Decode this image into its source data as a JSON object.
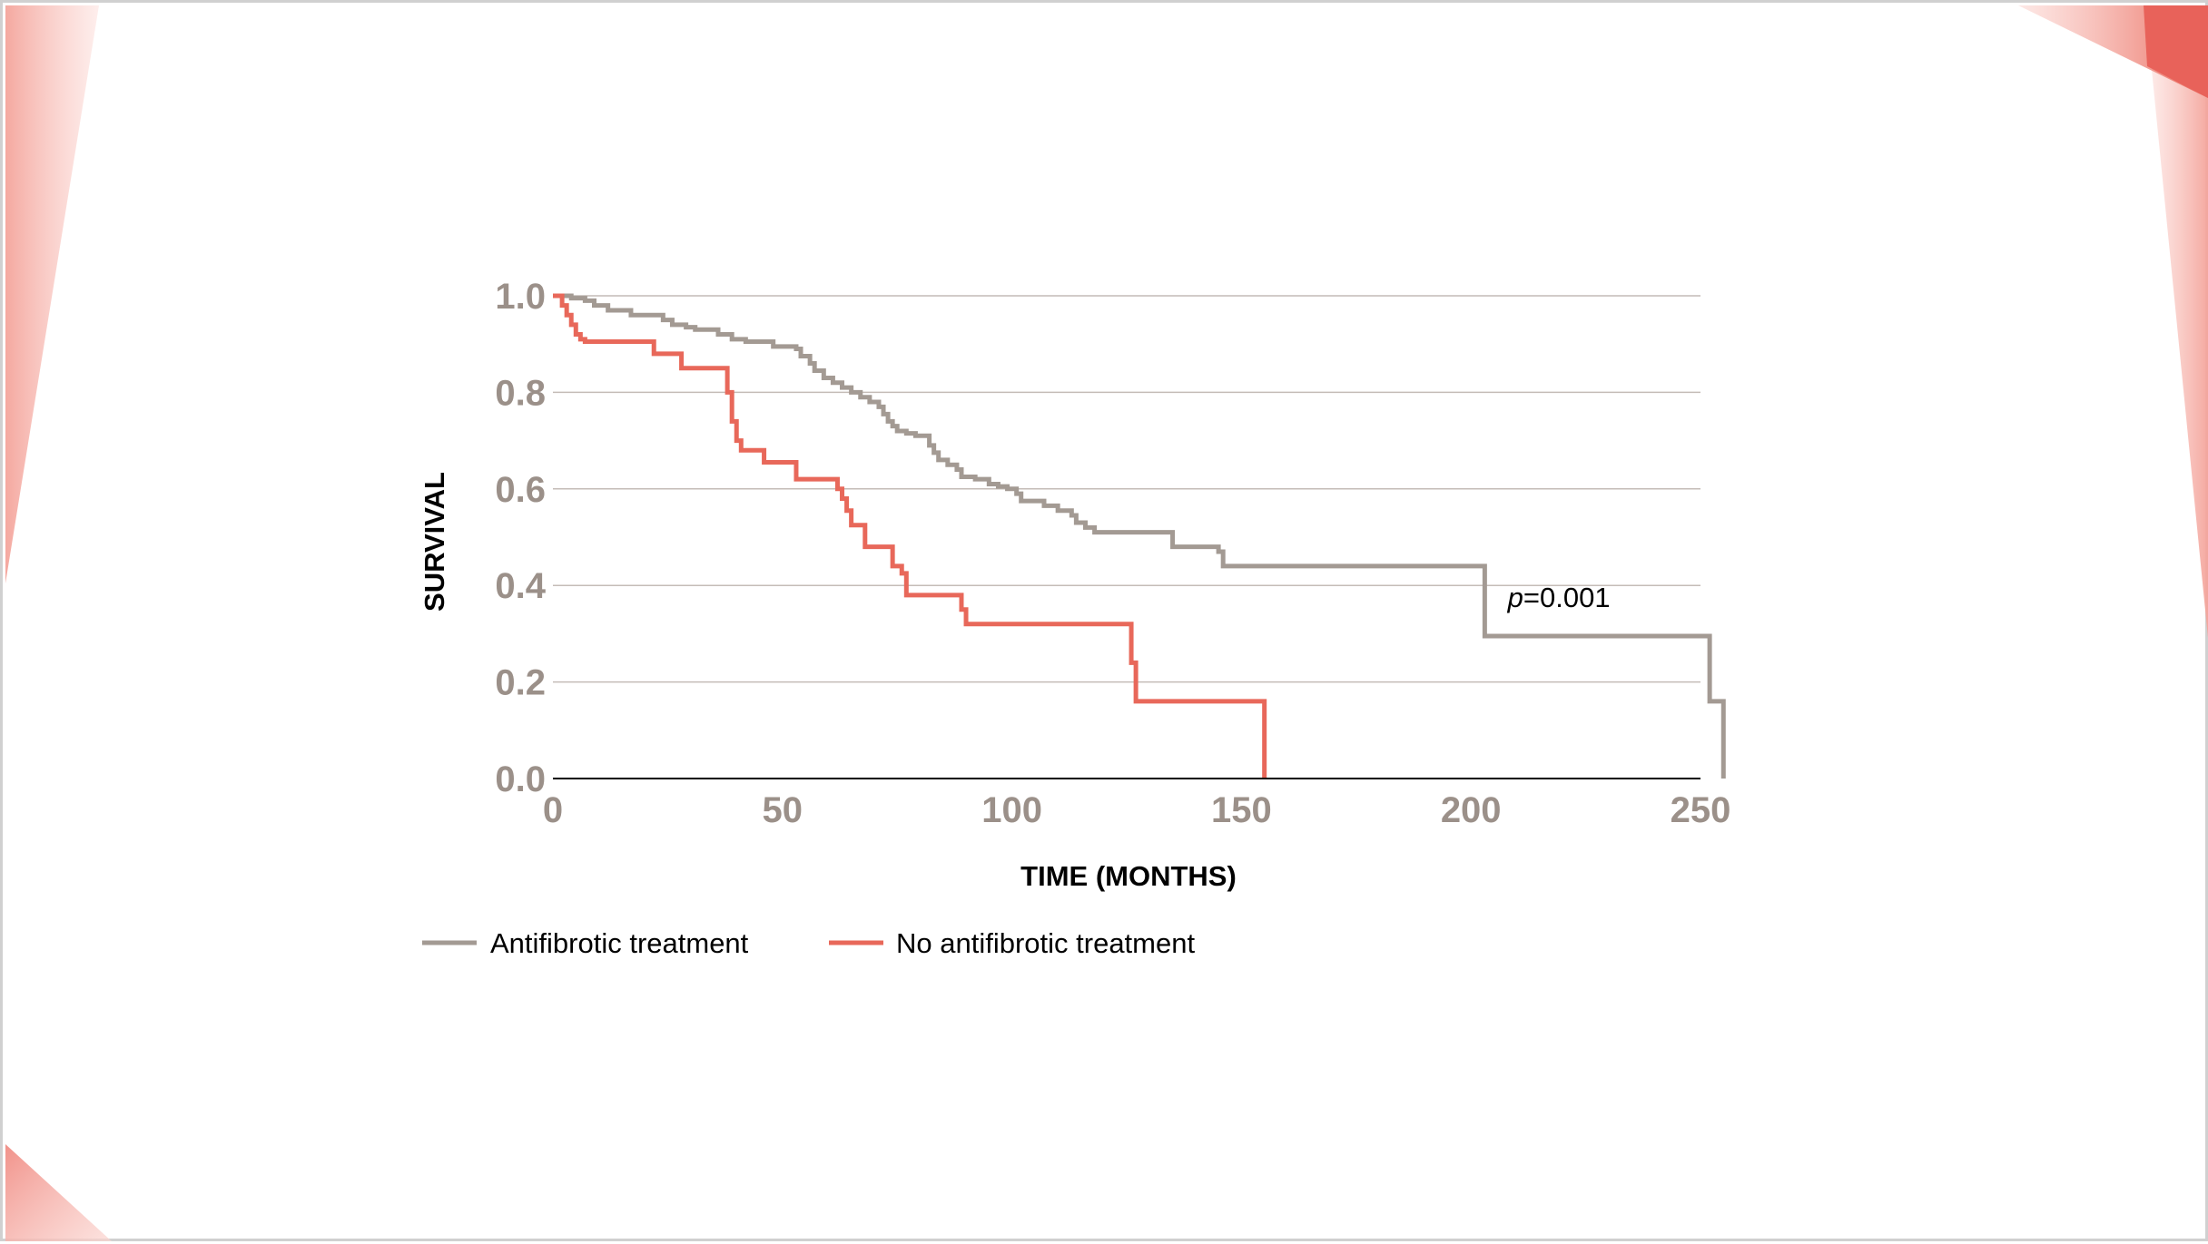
{
  "colors": {
    "treated": "#a39a93",
    "untreated": "#e8685a",
    "grid": "#c4bcb7",
    "tick_text": "#9b9089",
    "axis": "#000000",
    "accent": "#e8685a"
  },
  "chart_data": {
    "type": "line",
    "step": true,
    "title": "",
    "xlabel": "TIME (MONTHS)",
    "ylabel": "SURVIVAL",
    "xlim": [
      0,
      250
    ],
    "ylim": [
      0,
      1.0
    ],
    "xticks": [
      0,
      50,
      100,
      150,
      200,
      250
    ],
    "yticks": [
      0.0,
      0.2,
      0.4,
      0.6,
      0.8,
      1.0
    ],
    "ytick_labels": [
      "0.0",
      "0.2",
      "0.4",
      "0.6",
      "0.8",
      "1.0"
    ],
    "grid": "horizontal",
    "legend_position": "bottom-left",
    "annotation": {
      "p_symbol": "p",
      "p_value": "=0.001",
      "x": 208,
      "y": 0.355
    },
    "series": [
      {
        "name": "Antifibrotic treatment",
        "color": "#a39a93",
        "points": [
          [
            0,
            1.0
          ],
          [
            4,
            0.995
          ],
          [
            7,
            0.99
          ],
          [
            9,
            0.98
          ],
          [
            12,
            0.97
          ],
          [
            17,
            0.96
          ],
          [
            24,
            0.95
          ],
          [
            26,
            0.94
          ],
          [
            29,
            0.935
          ],
          [
            31,
            0.93
          ],
          [
            36,
            0.92
          ],
          [
            39,
            0.91
          ],
          [
            42,
            0.905
          ],
          [
            48,
            0.895
          ],
          [
            53,
            0.89
          ],
          [
            54,
            0.875
          ],
          [
            56,
            0.86
          ],
          [
            57,
            0.845
          ],
          [
            59,
            0.83
          ],
          [
            61,
            0.82
          ],
          [
            63,
            0.81
          ],
          [
            65,
            0.8
          ],
          [
            67,
            0.79
          ],
          [
            69,
            0.78
          ],
          [
            71,
            0.77
          ],
          [
            72,
            0.755
          ],
          [
            73,
            0.74
          ],
          [
            74,
            0.73
          ],
          [
            75,
            0.72
          ],
          [
            77,
            0.715
          ],
          [
            79,
            0.71
          ],
          [
            82,
            0.69
          ],
          [
            83,
            0.675
          ],
          [
            84,
            0.66
          ],
          [
            86,
            0.65
          ],
          [
            88,
            0.64
          ],
          [
            89,
            0.625
          ],
          [
            92,
            0.62
          ],
          [
            95,
            0.61
          ],
          [
            97,
            0.605
          ],
          [
            99,
            0.6
          ],
          [
            101,
            0.59
          ],
          [
            102,
            0.575
          ],
          [
            107,
            0.565
          ],
          [
            110,
            0.555
          ],
          [
            113,
            0.545
          ],
          [
            114,
            0.53
          ],
          [
            116,
            0.52
          ],
          [
            118,
            0.51
          ],
          [
            135,
            0.48
          ],
          [
            145,
            0.47
          ],
          [
            146,
            0.44
          ],
          [
            203,
            0.295
          ],
          [
            252,
            0.16
          ],
          [
            255,
            0.0
          ]
        ]
      },
      {
        "name": "No antifibrotic treatment",
        "color": "#e8685a",
        "points": [
          [
            0,
            1.0
          ],
          [
            2,
            0.98
          ],
          [
            3,
            0.96
          ],
          [
            4,
            0.94
          ],
          [
            5,
            0.92
          ],
          [
            6,
            0.91
          ],
          [
            7,
            0.905
          ],
          [
            22,
            0.88
          ],
          [
            28,
            0.85
          ],
          [
            38,
            0.8
          ],
          [
            39,
            0.74
          ],
          [
            40,
            0.7
          ],
          [
            41,
            0.68
          ],
          [
            43,
            0.68
          ],
          [
            46,
            0.655
          ],
          [
            53,
            0.62
          ],
          [
            62,
            0.6
          ],
          [
            63,
            0.58
          ],
          [
            64,
            0.555
          ],
          [
            65,
            0.525
          ],
          [
            68,
            0.48
          ],
          [
            74,
            0.44
          ],
          [
            76,
            0.425
          ],
          [
            77,
            0.38
          ],
          [
            89,
            0.35
          ],
          [
            90,
            0.32
          ],
          [
            126,
            0.24
          ],
          [
            127,
            0.16
          ],
          [
            155,
            0.0
          ]
        ]
      }
    ]
  }
}
